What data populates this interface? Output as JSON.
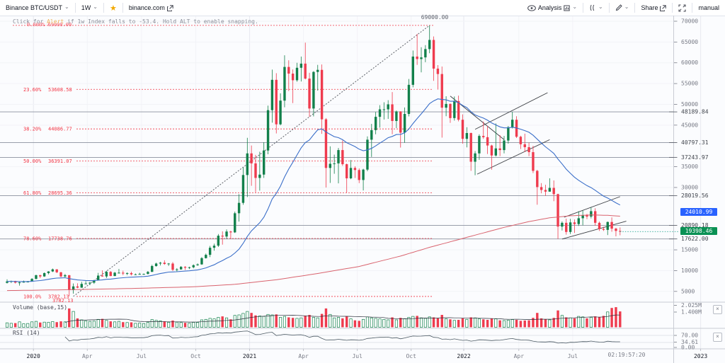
{
  "toolbar": {
    "symbol": "Binance BTC/USDT",
    "interval": "1W",
    "link": "binance.com",
    "analysis": "Analysis",
    "share": "Share",
    "mode": "manual"
  },
  "alert": {
    "before": "Click for ",
    "link": "Alert",
    "after": " if 1w Index falls to -53.4. Hold ALT to enable snapping."
  },
  "price_pane": {
    "peak_label": "69000.00",
    "tiny_zero_label": "0.000%  69000.00",
    "low_tag": "3782.13",
    "axis_ticks": [
      70000,
      65000,
      60000,
      55000,
      50000,
      45000,
      35000,
      30000,
      15000,
      10000,
      5000
    ],
    "level_lines": [
      48189.84,
      40797.31,
      37243.97,
      28019.56,
      20890.18,
      17622.0
    ],
    "badge_blue": "24010.99",
    "badge_green": "19398.46",
    "fib_levels": [
      {
        "pct": "0.000%",
        "value": "69000.00",
        "price": 69000,
        "show_label": false
      },
      {
        "pct": "23.60%",
        "value": "53608.58",
        "price": 53608.58,
        "show_label": true
      },
      {
        "pct": "38.20%",
        "value": "44086.77",
        "price": 44086.77,
        "show_label": true
      },
      {
        "pct": "50.00%",
        "value": "36391.07",
        "price": 36391.07,
        "show_label": true
      },
      {
        "pct": "61.80%",
        "value": "28695.36",
        "price": 28695.36,
        "show_label": true
      },
      {
        "pct": "78.60%",
        "value": "17738.76",
        "price": 17738.76,
        "show_label": true
      },
      {
        "pct": "100.0%",
        "value": "3782.13",
        "price": 3782.13,
        "show_label": true
      }
    ],
    "trendlines": [
      {
        "style": "dotted",
        "w1": 16,
        "p1": 3800,
        "w2": 102,
        "p2": 69000
      },
      {
        "style": "solid",
        "w1": 107,
        "p1": 52000,
        "w2": 120,
        "p2": 41500
      },
      {
        "style": "solid",
        "w1": 113,
        "p1": 44000,
        "w2": 130.5,
        "p2": 52800
      },
      {
        "style": "solid",
        "w1": 113.5,
        "p1": 33200,
        "w2": 131,
        "p2": 41500
      },
      {
        "style": "solid",
        "w1": 134,
        "p1": 17600,
        "w2": 149.5,
        "p2": 21900
      },
      {
        "style": "solid",
        "w1": 134.5,
        "p1": 22850,
        "w2": 148,
        "p2": 27800
      }
    ]
  },
  "volume_pane": {
    "label": "Volume (base,15)",
    "axis": [
      "2.025M",
      "1.400M"
    ],
    "close_glyph": "×"
  },
  "rsi_pane": {
    "label": "RSI (14)",
    "axis": [
      "70.00",
      "34.61",
      "0.00"
    ],
    "bands": [
      70,
      30
    ],
    "close_glyph": "×"
  },
  "time_axis": {
    "countdown": "02:19:57:20",
    "labels": [
      {
        "t": "2020",
        "w": 6.7,
        "major": true
      },
      {
        "t": "Apr",
        "w": 19.7,
        "major": false
      },
      {
        "t": "Jul",
        "w": 32.8,
        "major": false
      },
      {
        "t": "Oct",
        "w": 45.9,
        "major": false
      },
      {
        "t": "2021",
        "w": 58.9,
        "major": true
      },
      {
        "t": "Apr",
        "w": 71.9,
        "major": false
      },
      {
        "t": "Jul",
        "w": 84.9,
        "major": false
      },
      {
        "t": "Oct",
        "w": 97.9,
        "major": false
      },
      {
        "t": "2022",
        "w": 110.6,
        "major": true
      },
      {
        "t": "Apr",
        "w": 123.9,
        "major": false
      },
      {
        "t": "Jul",
        "w": 136.9,
        "major": false
      },
      {
        "t": "2023",
        "w": 167.8,
        "major": true
      }
    ]
  },
  "chart_data": {
    "type": "candlestick",
    "symbol": "BTC/USDT",
    "exchange": "Binance",
    "interval": "1W",
    "last_price": 19398.46,
    "colors": {
      "up": "#12804b",
      "down": "#ef3b4e",
      "fib": "#f23645",
      "ma_fast": "#3b6fc9",
      "ma_slow": "#d9636e",
      "last": "#089981"
    },
    "ma_fast": {
      "kind": "ema",
      "period": 25
    },
    "volume_ma_period": 15,
    "rsi_period": 14,
    "ma_slow_points": [
      [
        0,
        5200
      ],
      [
        15,
        5400
      ],
      [
        30,
        5700
      ],
      [
        45,
        6100
      ],
      [
        55,
        6700
      ],
      [
        65,
        7800
      ],
      [
        75,
        9300
      ],
      [
        85,
        11000
      ],
      [
        95,
        13500
      ],
      [
        102,
        15600
      ],
      [
        108,
        17200
      ],
      [
        114,
        18800
      ],
      [
        120,
        20400
      ],
      [
        126,
        21800
      ],
      [
        131,
        22700
      ],
      [
        136,
        23200
      ],
      [
        141,
        23400
      ],
      [
        145,
        23300
      ],
      [
        148,
        23100
      ]
    ],
    "candles": [
      [
        7050,
        7900,
        6900,
        7400,
        0.45
      ],
      [
        7400,
        7600,
        7000,
        7500,
        0.4
      ],
      [
        7500,
        7550,
        6900,
        7100,
        0.42
      ],
      [
        7100,
        7300,
        6400,
        7150,
        0.55
      ],
      [
        7150,
        7600,
        7100,
        7300,
        0.35
      ],
      [
        7300,
        7500,
        7150,
        7350,
        0.38
      ],
      [
        7350,
        8200,
        7300,
        8000,
        0.55
      ],
      [
        8000,
        9000,
        7900,
        8900,
        0.6
      ],
      [
        8900,
        9000,
        8200,
        8600,
        0.48
      ],
      [
        8600,
        9550,
        8500,
        9400,
        0.52
      ],
      [
        9400,
        9850,
        9100,
        9800,
        0.5
      ],
      [
        9800,
        10500,
        9650,
        10300,
        0.58
      ],
      [
        10300,
        10350,
        9400,
        9600,
        0.52
      ],
      [
        9600,
        9700,
        8400,
        8600,
        0.6
      ],
      [
        8600,
        9200,
        8400,
        8900,
        0.55
      ],
      [
        8900,
        8950,
        3800,
        5300,
        1.9
      ],
      [
        5300,
        6900,
        4450,
        6200,
        1.6
      ],
      [
        6200,
        6950,
        5750,
        5900,
        0.9
      ],
      [
        5900,
        7300,
        5850,
        6800,
        0.75
      ],
      [
        6800,
        7450,
        6750,
        6900,
        0.65
      ],
      [
        6900,
        7300,
        6500,
        7100,
        0.6
      ],
      [
        7100,
        7750,
        6800,
        7700,
        0.62
      ],
      [
        7700,
        9450,
        7650,
        8800,
        0.8
      ],
      [
        8800,
        10050,
        8550,
        8600,
        0.85
      ],
      [
        8600,
        9950,
        8250,
        9700,
        0.7
      ],
      [
        9700,
        9900,
        8650,
        8700,
        0.6
      ],
      [
        8700,
        9700,
        8650,
        9500,
        0.55
      ],
      [
        9500,
        10400,
        9300,
        9500,
        0.6
      ],
      [
        9500,
        9990,
        8900,
        9300,
        0.52
      ],
      [
        9300,
        9590,
        8910,
        9400,
        0.48
      ],
      [
        9400,
        9750,
        8830,
        9100,
        0.5
      ],
      [
        9100,
        9300,
        8950,
        9100,
        0.4
      ],
      [
        9100,
        9480,
        9050,
        9200,
        0.42
      ],
      [
        9200,
        9280,
        9000,
        9200,
        0.38
      ],
      [
        9200,
        9900,
        9100,
        9700,
        0.5
      ],
      [
        9700,
        11400,
        9650,
        11100,
        0.78
      ],
      [
        11100,
        11900,
        10950,
        11700,
        0.7
      ],
      [
        11700,
        12100,
        11250,
        11900,
        0.65
      ],
      [
        11900,
        12480,
        11400,
        11600,
        0.6
      ],
      [
        11600,
        11820,
        11130,
        11700,
        0.5
      ],
      [
        11700,
        12050,
        9900,
        10200,
        0.68
      ],
      [
        10200,
        10600,
        9820,
        10300,
        0.52
      ],
      [
        10300,
        11100,
        10200,
        10900,
        0.48
      ],
      [
        10900,
        11080,
        10150,
        10700,
        0.45
      ],
      [
        10700,
        10950,
        10380,
        10800,
        0.4
      ],
      [
        10800,
        11500,
        10550,
        11300,
        0.5
      ],
      [
        11300,
        11730,
        11150,
        11500,
        0.48
      ],
      [
        11500,
        13250,
        11400,
        13000,
        0.75
      ],
      [
        13000,
        14100,
        12900,
        13800,
        0.8
      ],
      [
        13800,
        15950,
        13250,
        15500,
        0.9
      ],
      [
        15500,
        16480,
        14800,
        16000,
        0.85
      ],
      [
        16000,
        18800,
        15700,
        18400,
        1.0
      ],
      [
        18400,
        19450,
        16250,
        18200,
        1.1
      ],
      [
        18200,
        19900,
        17600,
        19400,
        0.95
      ],
      [
        19400,
        19600,
        17600,
        19200,
        0.8
      ],
      [
        19200,
        24200,
        19050,
        23800,
        1.2
      ],
      [
        23800,
        28400,
        21800,
        26300,
        1.25
      ],
      [
        26300,
        34800,
        25850,
        33000,
        1.4
      ],
      [
        33000,
        41950,
        27700,
        38200,
        1.6
      ],
      [
        38200,
        40100,
        30400,
        35800,
        1.45
      ],
      [
        35800,
        37850,
        28850,
        32300,
        1.2
      ],
      [
        32300,
        38600,
        29250,
        33100,
        1.15
      ],
      [
        33100,
        40900,
        32300,
        38900,
        1.1
      ],
      [
        38900,
        49700,
        38000,
        48600,
        1.3
      ],
      [
        48600,
        58350,
        45600,
        55900,
        1.25
      ],
      [
        55900,
        57500,
        43000,
        45200,
        1.3
      ],
      [
        45200,
        52650,
        44950,
        50900,
        1.0
      ],
      [
        50900,
        61800,
        49300,
        59000,
        1.1
      ],
      [
        59000,
        60600,
        53200,
        57400,
        1.0
      ],
      [
        57400,
        58400,
        50300,
        55800,
        0.95
      ],
      [
        55800,
        60000,
        55450,
        58800,
        0.9
      ],
      [
        58800,
        61500,
        55500,
        59800,
        0.95
      ],
      [
        59800,
        64850,
        56000,
        56200,
        1.15
      ],
      [
        56200,
        57600,
        47000,
        49000,
        1.25
      ],
      [
        49000,
        58000,
        47100,
        57800,
        1.0
      ],
      [
        57800,
        59500,
        53300,
        58300,
        0.95
      ],
      [
        58300,
        59600,
        42900,
        46400,
        1.35
      ],
      [
        46400,
        46700,
        30000,
        34700,
        1.9
      ],
      [
        34700,
        39900,
        31100,
        35700,
        1.3
      ],
      [
        35700,
        37900,
        33300,
        35800,
        0.95
      ],
      [
        35800,
        39500,
        31000,
        39000,
        1.0
      ],
      [
        39000,
        41300,
        35200,
        35600,
        0.9
      ],
      [
        35600,
        35750,
        28800,
        32200,
        1.1
      ],
      [
        32200,
        36600,
        32000,
        34700,
        0.85
      ],
      [
        34700,
        35100,
        32300,
        34200,
        0.7
      ],
      [
        34200,
        34600,
        31050,
        31800,
        0.65
      ],
      [
        31800,
        34500,
        29300,
        34300,
        0.8
      ],
      [
        34300,
        42300,
        33900,
        41500,
        1.05
      ],
      [
        41500,
        45300,
        37350,
        43800,
        0.95
      ],
      [
        43800,
        48150,
        42800,
        47000,
        0.9
      ],
      [
        47000,
        49800,
        44400,
        48800,
        0.85
      ],
      [
        48800,
        50500,
        46350,
        48800,
        0.8
      ],
      [
        48800,
        51000,
        46500,
        50000,
        0.75
      ],
      [
        50000,
        52950,
        42800,
        46000,
        1.0
      ],
      [
        46000,
        48500,
        44300,
        48300,
        0.75
      ],
      [
        48300,
        48350,
        39600,
        43200,
        0.95
      ],
      [
        43200,
        49250,
        40750,
        47700,
        0.85
      ],
      [
        47700,
        56100,
        47100,
        54700,
        1.0
      ],
      [
        54700,
        62950,
        54100,
        61500,
        1.1
      ],
      [
        61500,
        66950,
        59500,
        60900,
        1.15
      ],
      [
        60900,
        63750,
        57700,
        61300,
        0.95
      ],
      [
        61300,
        64250,
        60150,
        63300,
        0.9
      ],
      [
        63300,
        69000,
        62300,
        65500,
        1.05
      ],
      [
        65500,
        66350,
        55650,
        58600,
        1.0
      ],
      [
        58600,
        59450,
        53550,
        57300,
        0.9
      ],
      [
        57300,
        59100,
        42000,
        49200,
        1.25
      ],
      [
        49200,
        51950,
        47150,
        50100,
        0.85
      ],
      [
        50100,
        50250,
        45550,
        46700,
        0.8
      ],
      [
        46700,
        51900,
        46100,
        50800,
        0.7
      ],
      [
        50800,
        52100,
        45900,
        46300,
        0.75
      ],
      [
        46300,
        47600,
        40550,
        41700,
        0.9
      ],
      [
        41700,
        44500,
        39650,
        43100,
        0.8
      ],
      [
        43100,
        43200,
        34000,
        36200,
        1.0
      ],
      [
        36200,
        38750,
        32950,
        38200,
        0.95
      ],
      [
        38200,
        42800,
        36650,
        42400,
        0.85
      ],
      [
        42400,
        45850,
        41700,
        42100,
        0.8
      ],
      [
        42100,
        44800,
        38050,
        40100,
        0.75
      ],
      [
        40100,
        40300,
        34300,
        37700,
        0.9
      ],
      [
        37700,
        45400,
        37450,
        39400,
        0.85
      ],
      [
        39400,
        42600,
        37550,
        39000,
        0.7
      ],
      [
        39000,
        42400,
        38200,
        41300,
        0.68
      ],
      [
        41300,
        44800,
        40550,
        44500,
        0.72
      ],
      [
        44500,
        48190,
        44200,
        46300,
        0.78
      ],
      [
        46300,
        47150,
        41900,
        42200,
        0.75
      ],
      [
        42200,
        42450,
        39250,
        40400,
        0.65
      ],
      [
        40400,
        42950,
        38550,
        39700,
        0.68
      ],
      [
        39700,
        40800,
        37550,
        38500,
        0.7
      ],
      [
        38500,
        40020,
        33450,
        34000,
        0.95
      ],
      [
        34000,
        34250,
        25850,
        30100,
        1.45
      ],
      [
        30100,
        31050,
        28600,
        29400,
        0.9
      ],
      [
        29400,
        30650,
        28000,
        29000,
        0.8
      ],
      [
        29000,
        32200,
        29000,
        29900,
        0.75
      ],
      [
        29900,
        31700,
        26700,
        28400,
        0.95
      ],
      [
        28400,
        28500,
        17622,
        20600,
        1.7
      ],
      [
        20600,
        21850,
        19650,
        21500,
        1.2
      ],
      [
        21500,
        22500,
        18650,
        19300,
        1.0
      ],
      [
        19300,
        22450,
        18800,
        21600,
        0.95
      ],
      [
        21600,
        22300,
        19050,
        21200,
        0.9
      ],
      [
        21200,
        24280,
        20750,
        22600,
        1.1
      ],
      [
        22600,
        24450,
        20890,
        23300,
        1.05
      ],
      [
        23300,
        23650,
        22400,
        23000,
        0.9
      ],
      [
        23000,
        25200,
        22560,
        24300,
        1.0
      ],
      [
        24300,
        25000,
        20800,
        21500,
        1.1
      ],
      [
        21500,
        21800,
        19550,
        20000,
        1.05
      ],
      [
        20000,
        20550,
        19550,
        19800,
        1.15
      ],
      [
        19800,
        21800,
        18550,
        21700,
        1.55
      ],
      [
        21700,
        22800,
        19350,
        20100,
        1.95
      ],
      [
        20100,
        20300,
        18250,
        19550,
        2.03
      ],
      [
        19550,
        20380,
        18500,
        19398.46,
        1.6
      ]
    ]
  }
}
